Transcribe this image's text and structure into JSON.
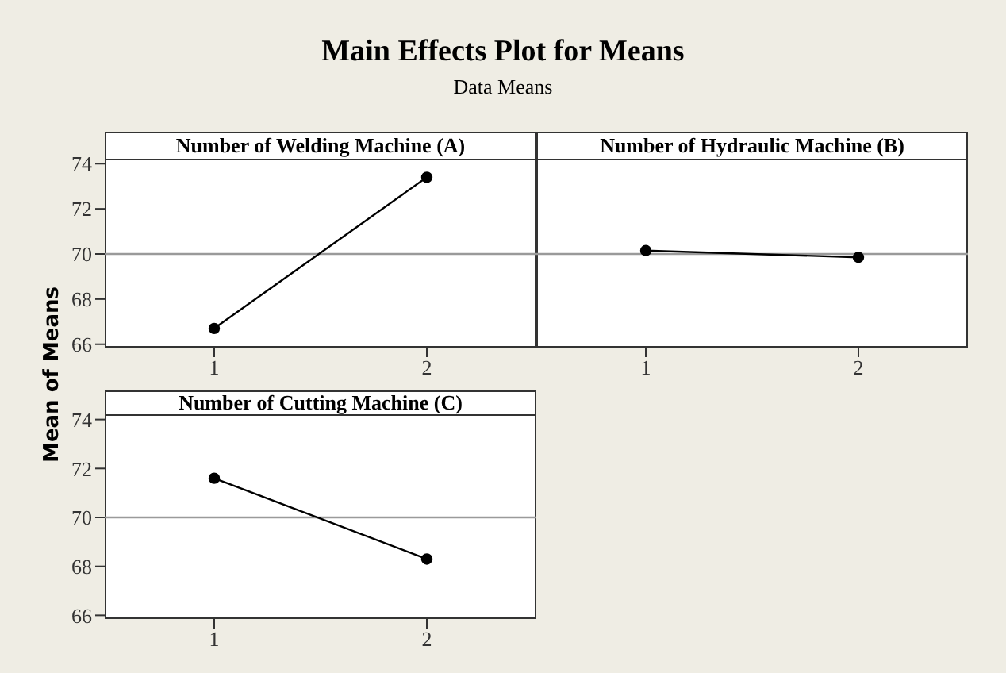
{
  "chart_data": [
    {
      "type": "line",
      "title": "Number of Welding Machine (A)",
      "ylabel": "Mean of Means",
      "annotations": [
        "Main Effects Plot for Means",
        "Data Means"
      ],
      "categories": [
        "1",
        "2"
      ],
      "series": [
        {
          "color": "#000000",
          "values": [
            66.7,
            73.4
          ]
        }
      ],
      "ylim": [
        65.85,
        74.15
      ],
      "yticks": [
        66,
        68,
        70,
        72,
        74
      ],
      "ref_lines": [
        {
          "axis": "y",
          "value": 70,
          "color": "#9a9a9a"
        }
      ],
      "marker": "circle",
      "line_style": "solid",
      "grid": false
    },
    {
      "type": "line",
      "title": "Number of Hydraulic Machine (B)",
      "categories": [
        "1",
        "2"
      ],
      "series": [
        {
          "color": "#000000",
          "values": [
            70.15,
            69.85
          ]
        }
      ],
      "ylim": [
        65.85,
        74.15
      ],
      "yticks": [
        66,
        68,
        70,
        72,
        74
      ],
      "tick_labels": "x",
      "ref_lines": [
        {
          "axis": "y",
          "value": 70,
          "color": "#9a9a9a"
        }
      ],
      "marker": "circle",
      "line_style": "solid",
      "grid": false
    },
    {
      "type": "line",
      "title": "Number of Cutting Machine (C)",
      "categories": [
        "1",
        "2"
      ],
      "series": [
        {
          "color": "#000000",
          "values": [
            71.6,
            68.3
          ]
        }
      ],
      "ylim": [
        65.85,
        74.15
      ],
      "yticks": [
        66,
        68,
        70,
        72,
        74
      ],
      "ref_lines": [
        {
          "axis": "y",
          "value": 70,
          "color": "#9a9a9a"
        }
      ],
      "marker": "circle",
      "line_style": "solid",
      "grid": false
    }
  ]
}
